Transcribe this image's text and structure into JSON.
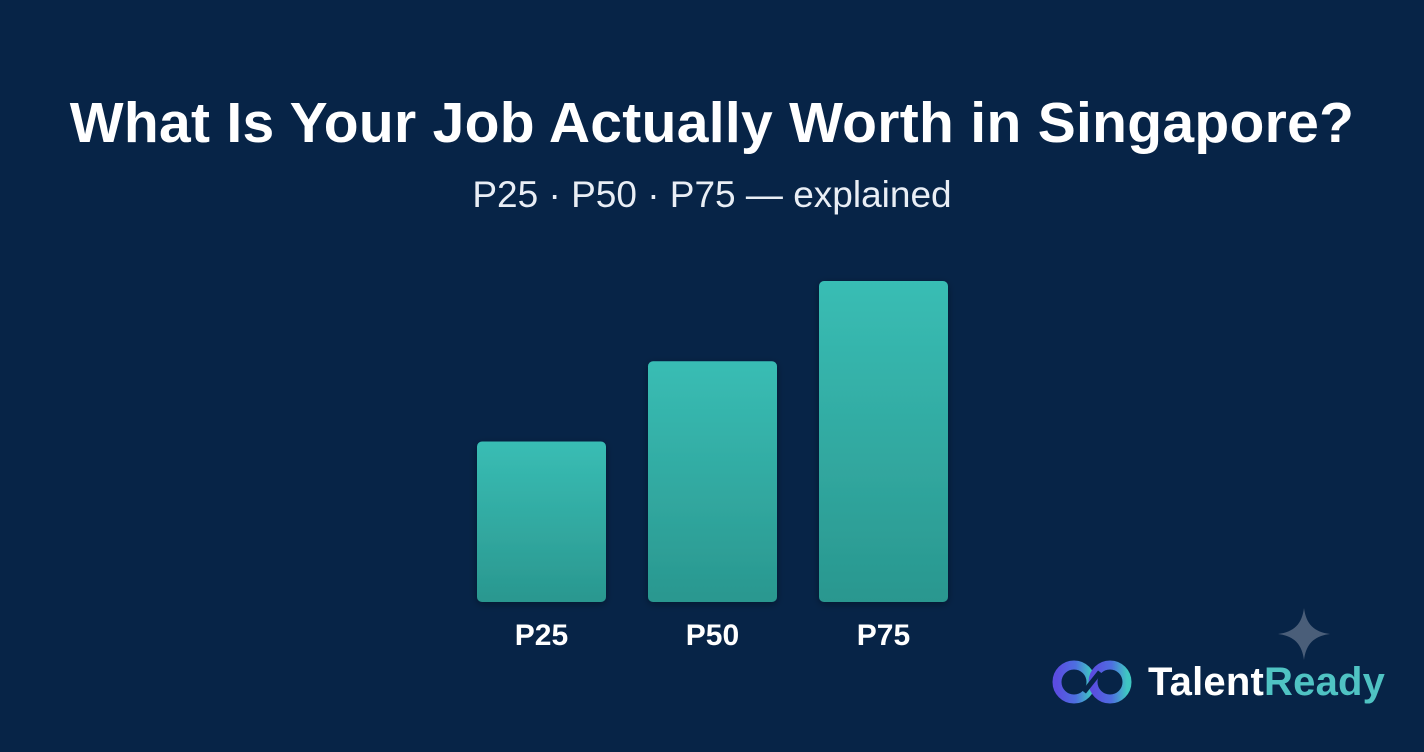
{
  "header": {
    "title": "What Is Your Job Actually Worth in Singapore?",
    "subtitle": "P25 · P50 · P75 — explained"
  },
  "brand": {
    "name_part1": "Talent",
    "name_part2": "Ready",
    "logo_icon": "infinity-link-icon",
    "sparkle_icon": "four-point-star-icon",
    "colors": {
      "text": "#ffffff",
      "accent": "#4fc3c3",
      "logo_blue": "#5b4de0",
      "logo_teal": "#3fc7c2"
    }
  },
  "theme": {
    "background": "#072447",
    "bar_color_top": "#39bdb4",
    "bar_color_bottom": "#2a978f"
  },
  "chart_data": {
    "type": "bar",
    "categories": [
      "P25",
      "P50",
      "P75"
    ],
    "values": [
      1,
      1.5,
      2
    ],
    "title": "",
    "xlabel": "",
    "ylabel": "",
    "ylim": [
      0,
      2
    ],
    "grid": false,
    "axes_visible": false,
    "legend": "none"
  }
}
